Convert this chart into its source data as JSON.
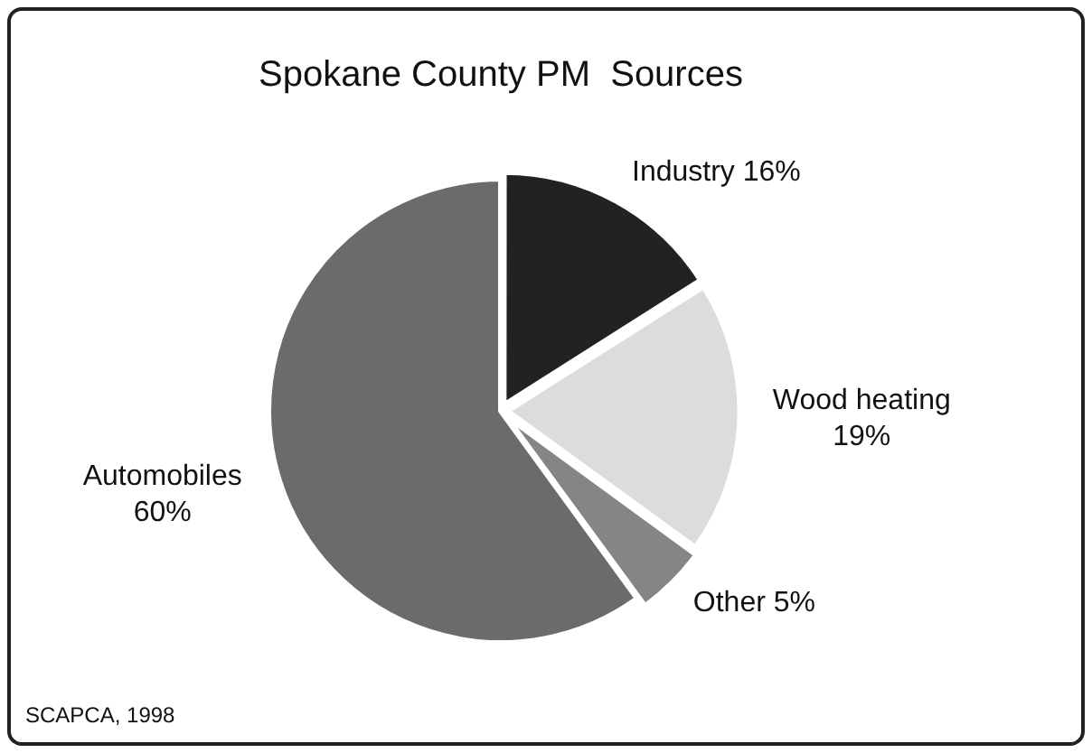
{
  "chart_data": {
    "type": "pie",
    "title": "Spokane County PM  Sources",
    "categories": [
      "Industry",
      "Wood heating",
      "Other",
      "Automobiles"
    ],
    "values": [
      16,
      19,
      5,
      60
    ],
    "value_labels": [
      "16%",
      "19%",
      "5%",
      "60%"
    ],
    "colors": [
      "#222222",
      "#dcdcdc",
      "#858585",
      "#6b6b6b"
    ],
    "legend": false,
    "annotations": [
      "SCAPCA, 1998"
    ]
  }
}
